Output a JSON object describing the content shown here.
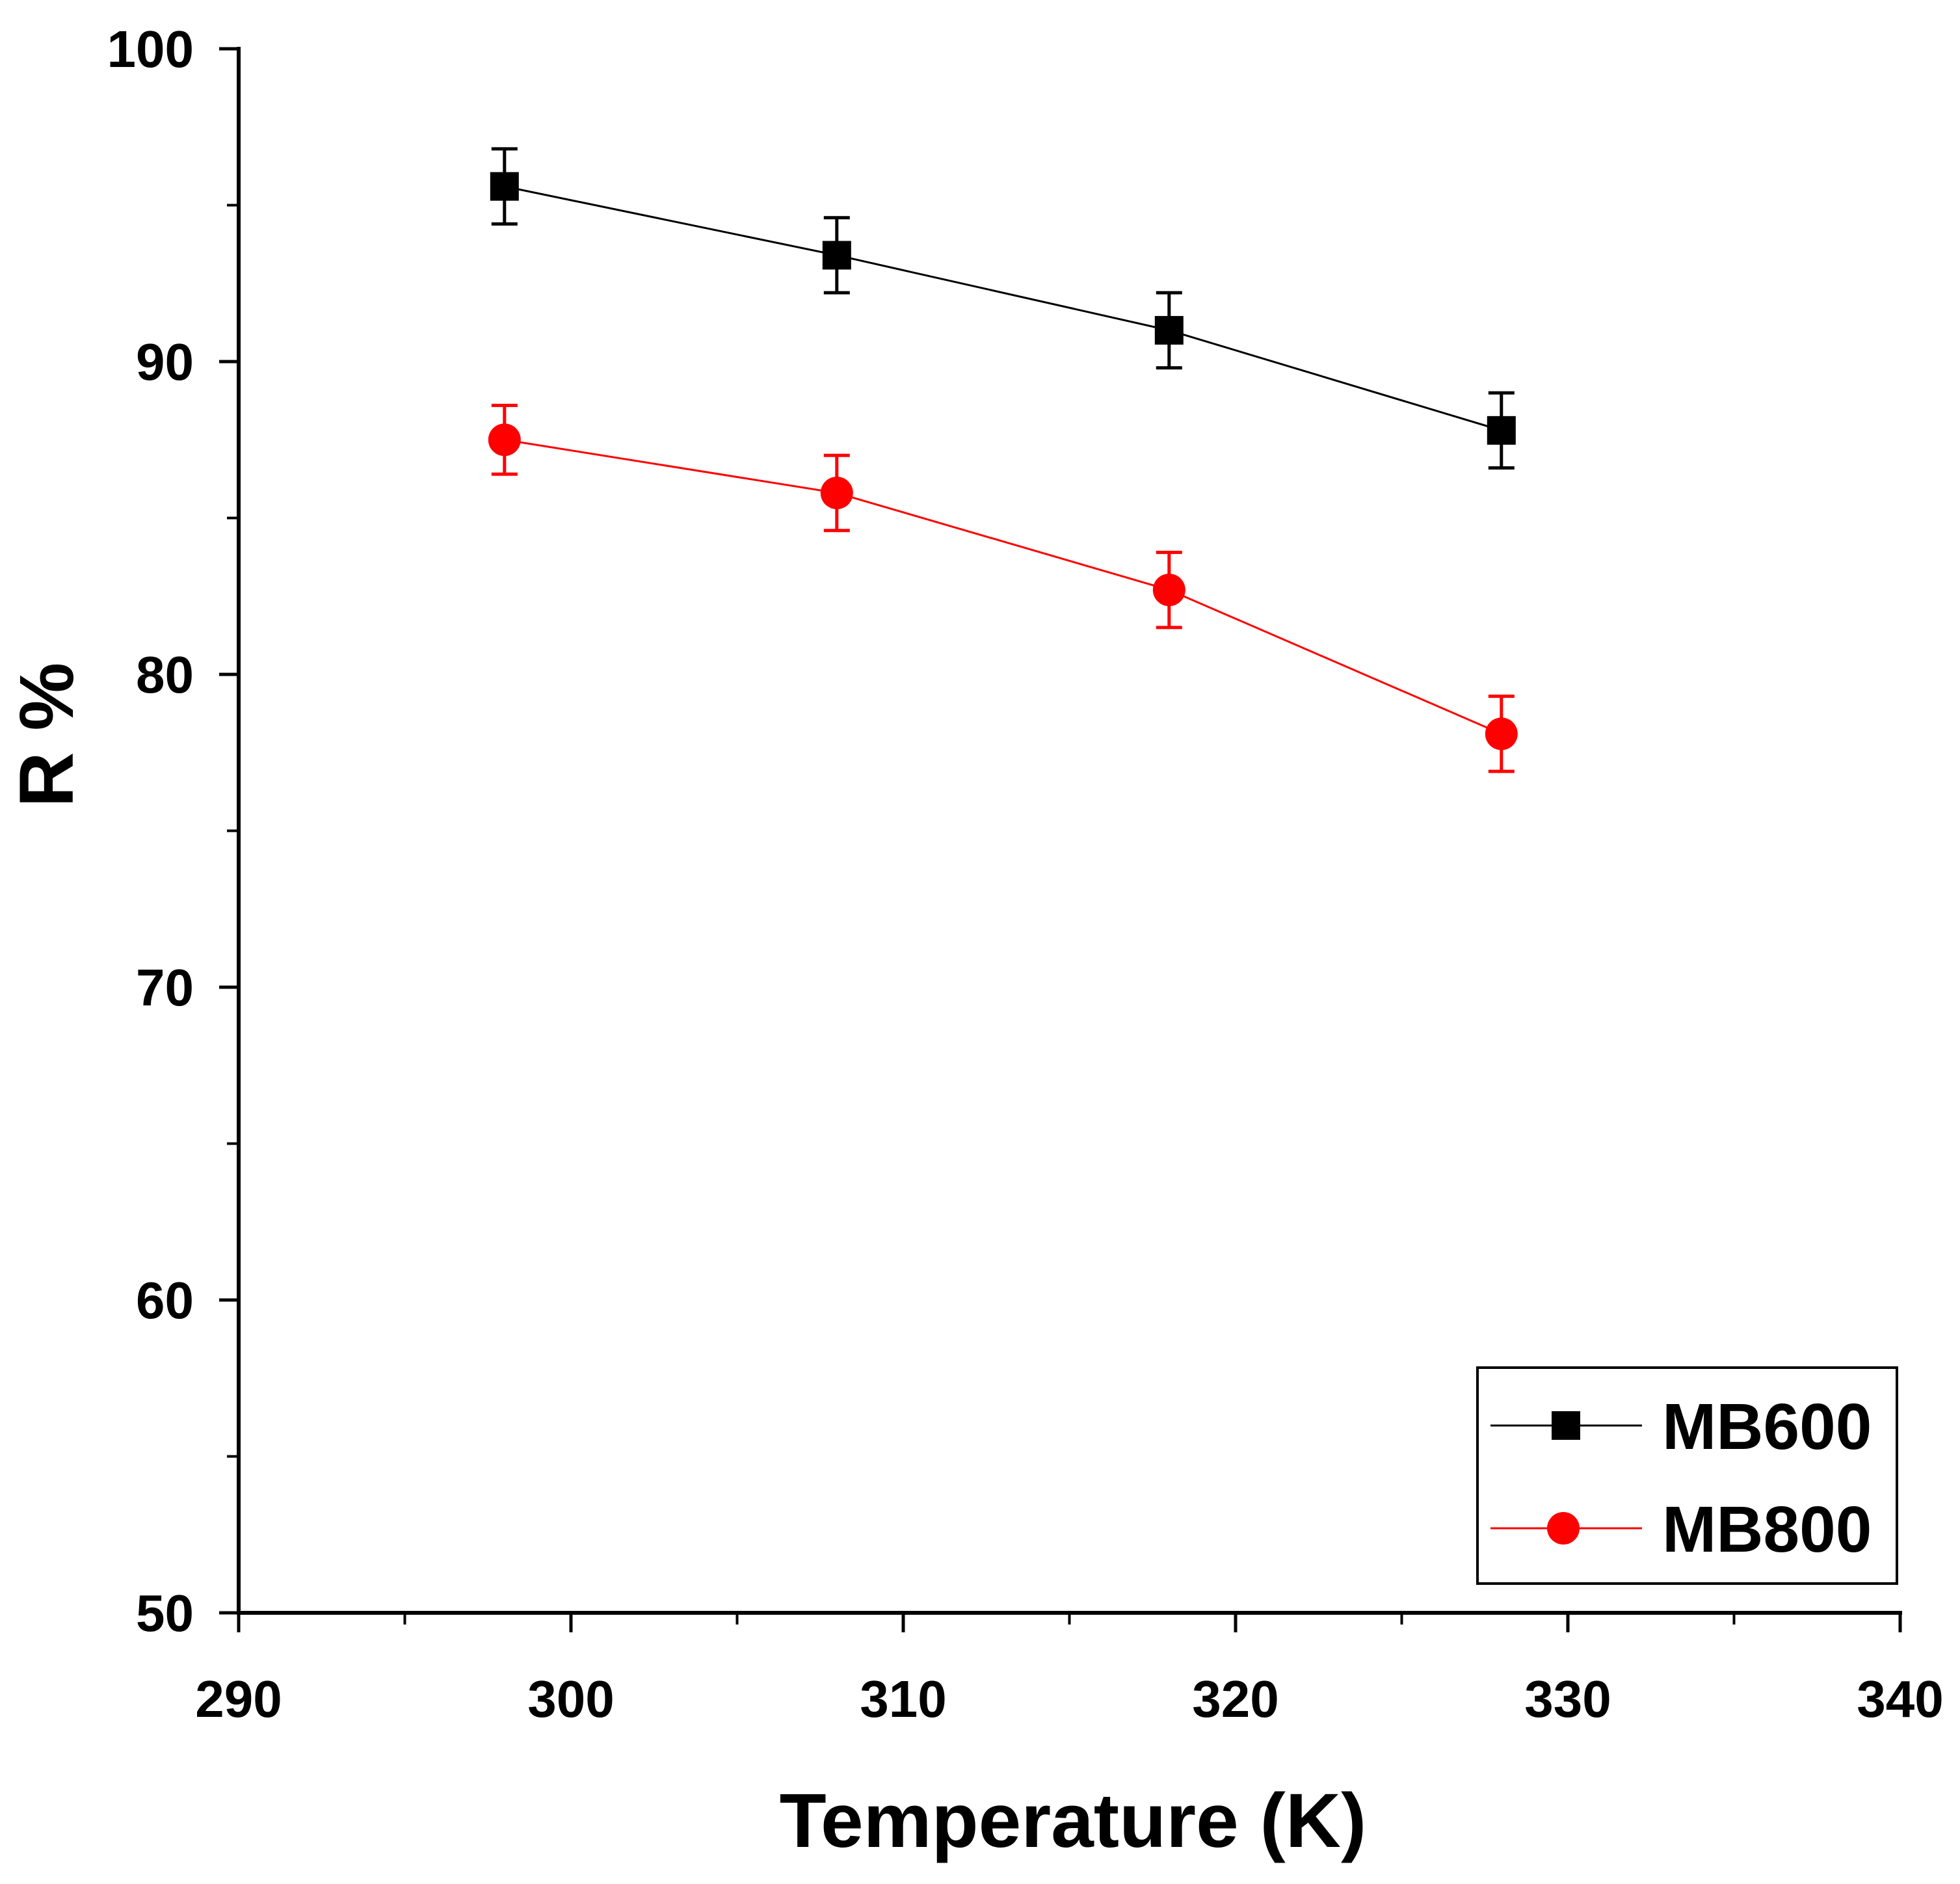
{
  "chart_data": {
    "type": "line",
    "title": "",
    "xlabel": "Temperature (K)",
    "ylabel": "R %",
    "xlim": [
      290,
      340
    ],
    "ylim": [
      50,
      100
    ],
    "x_major_ticks": [
      290,
      300,
      310,
      320,
      330,
      340
    ],
    "x_minor_ticks": [
      295,
      305,
      315,
      325,
      335
    ],
    "y_major_ticks": [
      50,
      60,
      70,
      80,
      90,
      100
    ],
    "y_minor_ticks": [
      55,
      65,
      75,
      85,
      95
    ],
    "x_tick_labels": [
      "290",
      "300",
      "310",
      "320",
      "330",
      "340"
    ],
    "y_tick_labels": [
      "50",
      "60",
      "70",
      "80",
      "90",
      "100"
    ],
    "grid": false,
    "legend_position": "bottom-right",
    "x": [
      298,
      308,
      318,
      328
    ],
    "series": [
      {
        "name": "MB600",
        "color": "#000000",
        "marker": "square",
        "values": [
          95.6,
          93.4,
          91.0,
          87.8
        ],
        "errors": [
          1.2,
          1.2,
          1.2,
          1.2
        ]
      },
      {
        "name": "MB800",
        "color": "#ff0000",
        "marker": "circle",
        "values": [
          87.5,
          85.8,
          82.7,
          78.1
        ],
        "errors": [
          1.1,
          1.2,
          1.2,
          1.2
        ]
      }
    ]
  }
}
